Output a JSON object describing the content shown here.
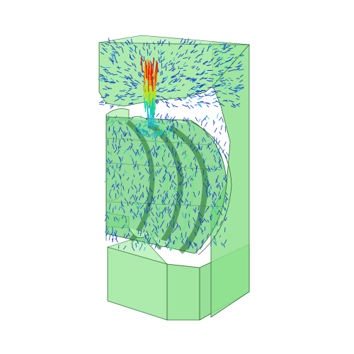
{
  "scene": {
    "background": "#ffffff",
    "body_fill": "#98e698",
    "body_fill_dark": "#6fd07a",
    "body_fill_light": "#b4efb4",
    "edge_color": "#2f6a38",
    "vector_colors": [
      "#1238c8",
      "#1a63e0",
      "#12b0d8",
      "#18d0a0",
      "#b8e020",
      "#f0a000",
      "#e01a10"
    ],
    "vector_field": "velocity-vectors",
    "view": "isometric-cutaway",
    "legend_shown": false
  }
}
